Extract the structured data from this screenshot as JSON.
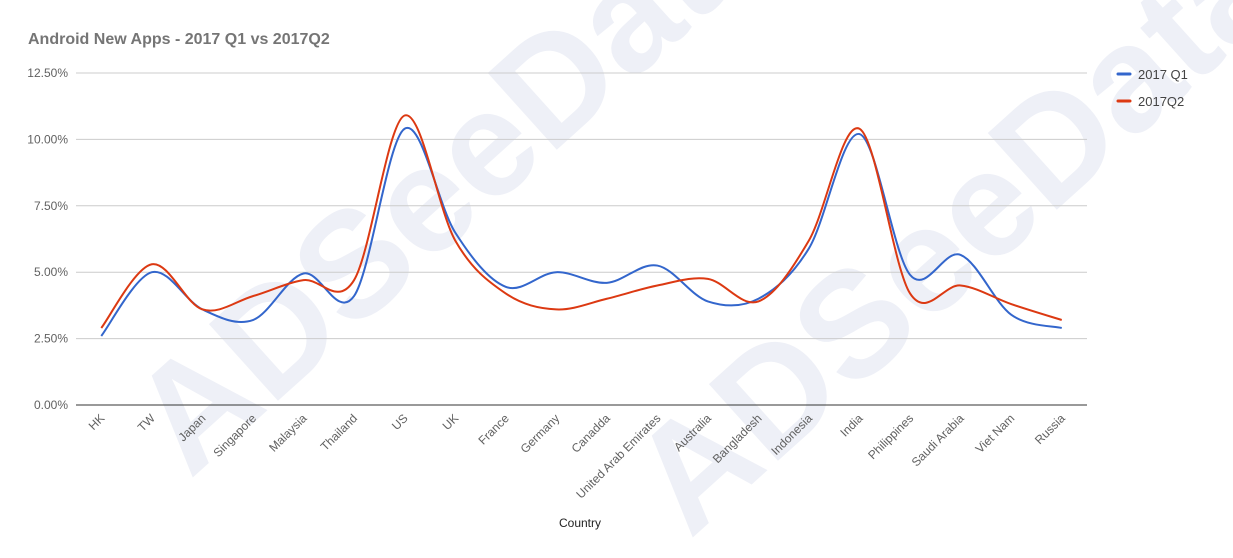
{
  "chart_data": {
    "type": "line",
    "title": "Android New Apps - 2017 Q1 vs 2017Q2",
    "xlabel": "Country",
    "ylabel": "",
    "ylim": [
      0,
      12.5
    ],
    "y_ticks": [
      "0.00%",
      "2.50%",
      "5.00%",
      "7.50%",
      "10.00%",
      "12.50%"
    ],
    "y_tick_values": [
      0,
      2.5,
      5,
      7.5,
      10,
      12.5
    ],
    "grid": true,
    "legend_position": "right",
    "watermark": "ADSeeData",
    "categories": [
      "HK",
      "TW",
      "Japan",
      "Singapore",
      "Malaysia",
      "Thailand",
      "US",
      "UK",
      "France",
      "Germany",
      "Canadda",
      "United Arab Emirates",
      "Australia",
      "Bangladesh",
      "Indonesia",
      "India",
      "Philippines",
      "Saudi Arabia",
      "Viet Nam",
      "Russia"
    ],
    "series": [
      {
        "name": "2017 Q1",
        "color": "#3366cc",
        "values": [
          2.6,
          5.0,
          3.6,
          3.2,
          4.95,
          4.1,
          10.4,
          6.5,
          4.45,
          5.0,
          4.6,
          5.25,
          3.9,
          4.0,
          5.9,
          10.2,
          4.9,
          5.65,
          3.4,
          2.9
        ]
      },
      {
        "name": "2017Q2",
        "color": "#dc3912",
        "values": [
          2.9,
          5.3,
          3.6,
          4.1,
          4.7,
          4.7,
          10.9,
          6.2,
          4.2,
          3.6,
          4.0,
          4.5,
          4.75,
          3.9,
          6.2,
          10.4,
          4.2,
          4.5,
          3.8,
          3.2
        ]
      }
    ]
  }
}
